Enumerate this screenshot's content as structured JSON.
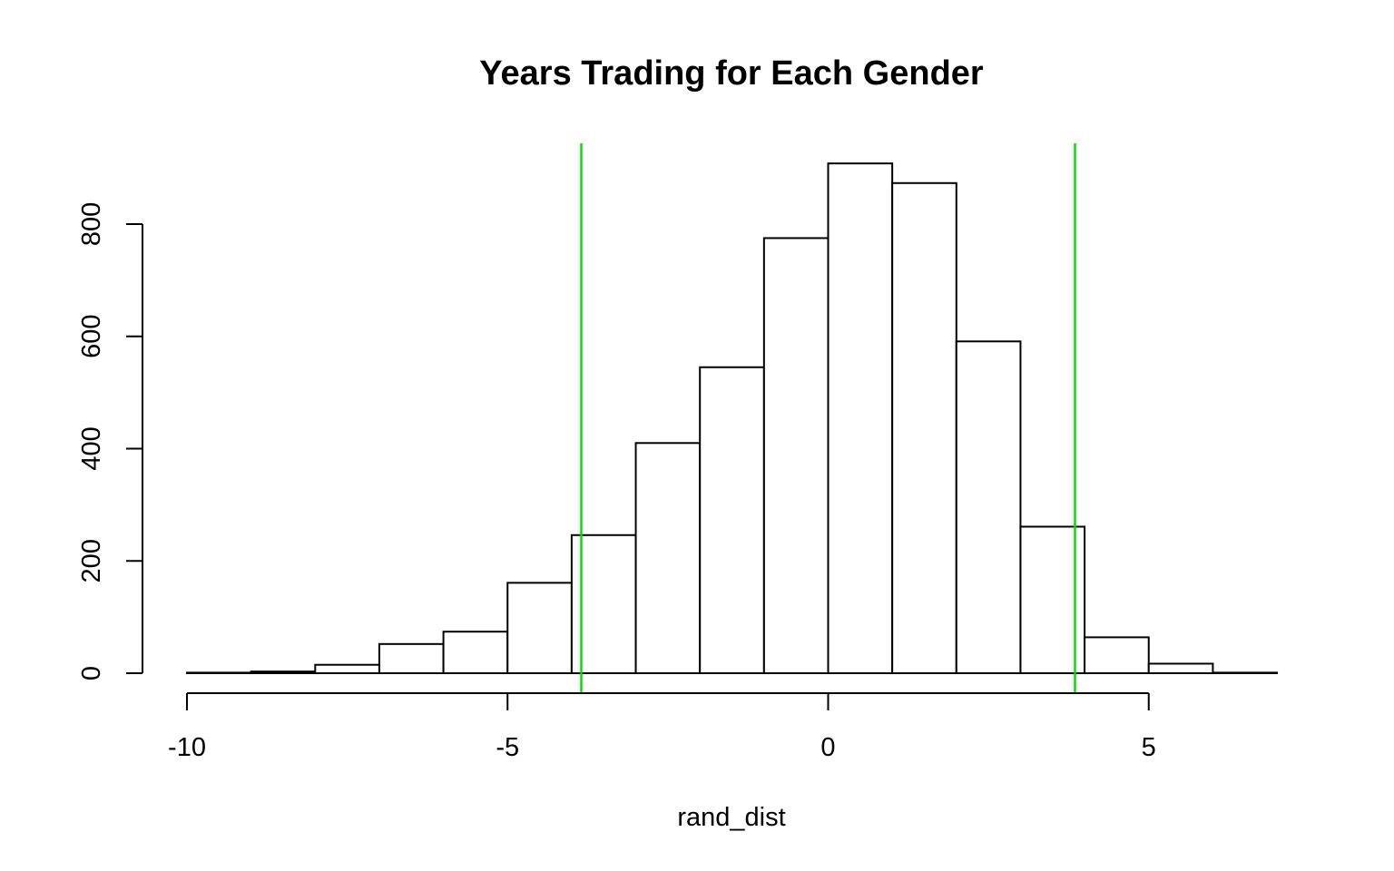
{
  "chart_data": {
    "type": "bar",
    "title": "Years Trading for Each Gender",
    "xlabel": "rand_dist",
    "ylabel": "",
    "bin_edges": [
      -10,
      -9,
      -8,
      -7,
      -6,
      -5,
      -4,
      -3,
      -2,
      -1,
      0,
      1,
      2,
      3,
      4,
      5,
      6,
      7
    ],
    "values": [
      1,
      3,
      15,
      52,
      74,
      161,
      246,
      410,
      545,
      775,
      908,
      873,
      591,
      261,
      64,
      17,
      1
    ],
    "xlim": [
      -10,
      7
    ],
    "ylim": [
      0,
      900
    ],
    "x_ticks": [
      -10,
      -5,
      0,
      5
    ],
    "x_tick_labels": [
      "-10",
      "-5",
      "0",
      "5"
    ],
    "y_ticks": [
      0,
      200,
      400,
      600,
      800
    ],
    "y_tick_labels": [
      "0",
      "200",
      "400",
      "600",
      "800"
    ],
    "vlines": [
      -3.85,
      3.85
    ],
    "vline_color": "#00e000",
    "bar_fill": "#ffffff",
    "bar_stroke": "#000000",
    "grid": false,
    "legend": "none"
  }
}
